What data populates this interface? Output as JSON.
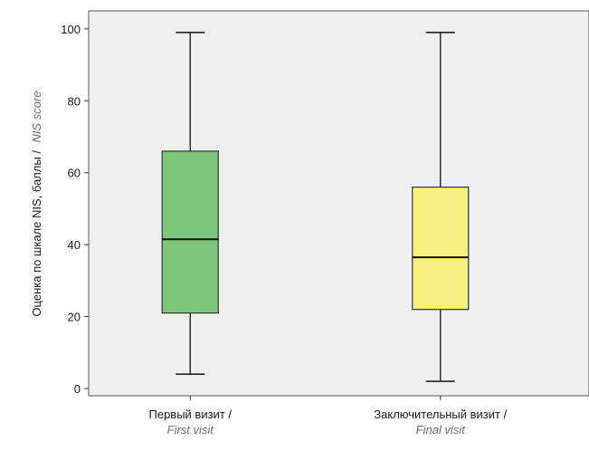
{
  "chart_data": {
    "type": "boxplot",
    "ylabel": "Оценка по шкале NIS, баллы /",
    "ylabel_sub": "NIS score",
    "ylim": [
      -2,
      105
    ],
    "yticks": [
      0,
      20,
      40,
      60,
      80,
      100
    ],
    "grid": false,
    "plot_background": "#efefef",
    "categories": [
      {
        "label": "Первый визит /",
        "sublabel": "First visit"
      },
      {
        "label": "Заключительный визит /",
        "sublabel": "Final visit"
      }
    ],
    "boxes": [
      {
        "min": 4,
        "q1": 21,
        "median": 41.5,
        "q3": 66,
        "max": 99,
        "color": "#7dc67b"
      },
      {
        "min": 2,
        "q1": 22,
        "median": 36.5,
        "q3": 56,
        "max": 99,
        "color": "#f7ef80"
      }
    ]
  }
}
